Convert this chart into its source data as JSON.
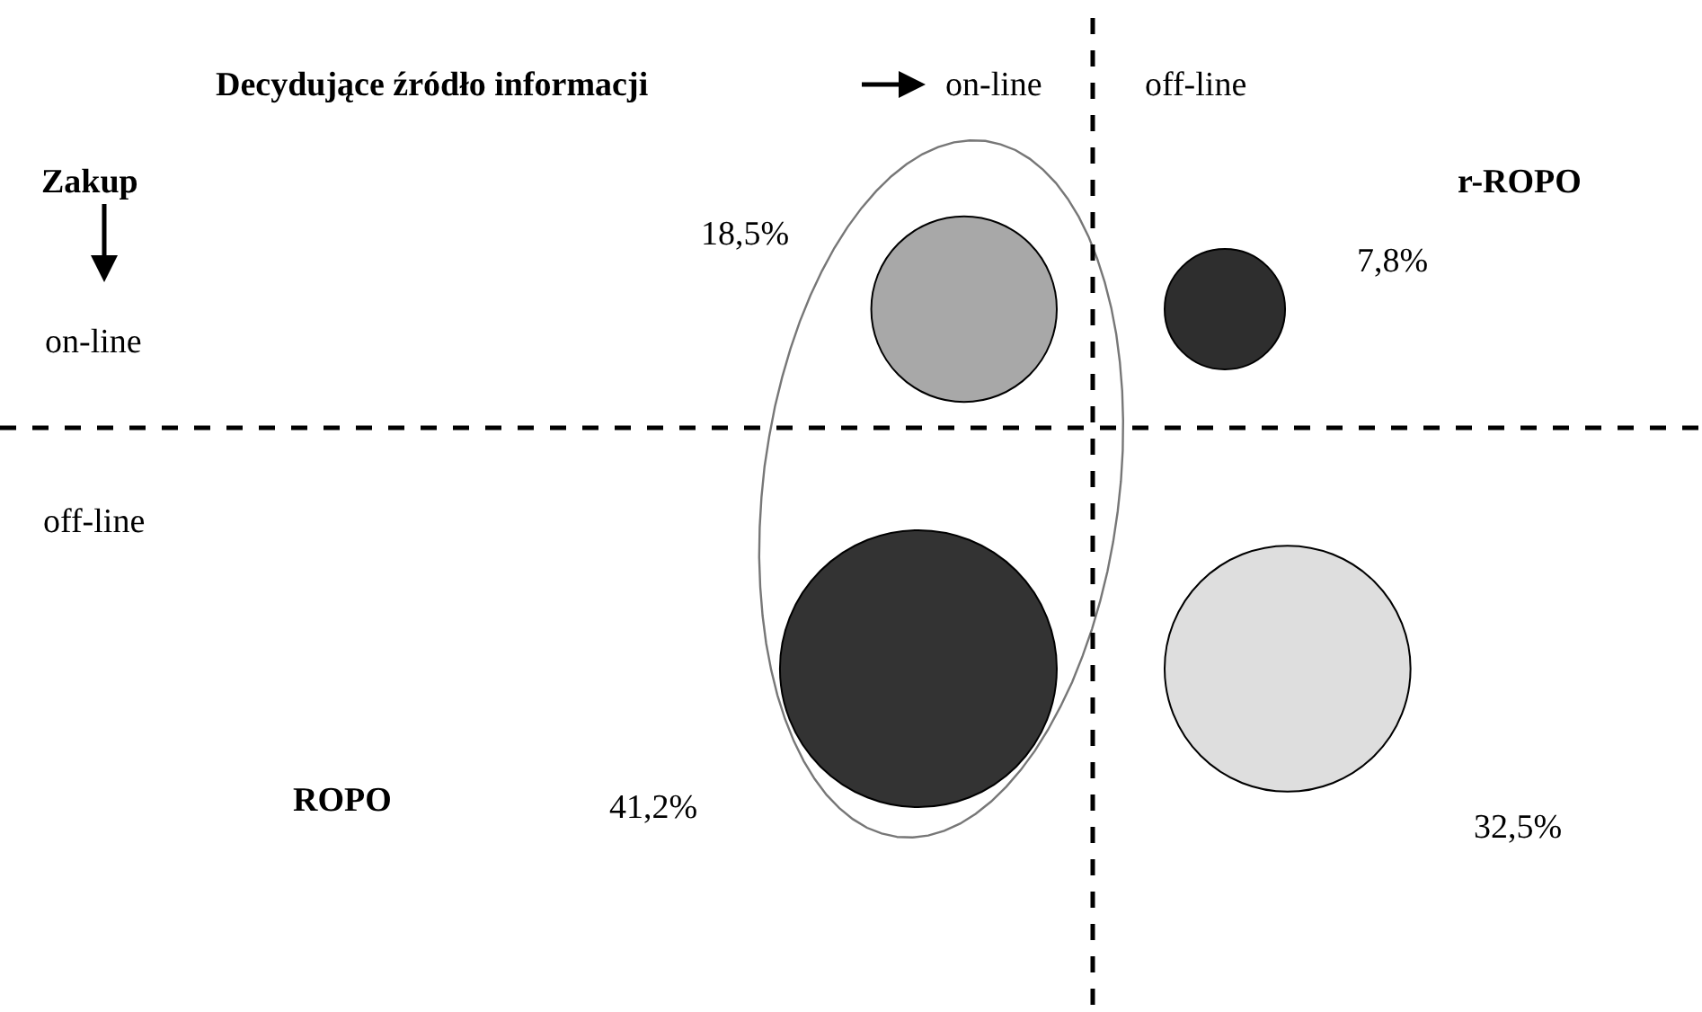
{
  "chart_data": {
    "type": "other",
    "xlabel": "Decydujące źródło informacji",
    "ylabel": "Zakup",
    "categories": [
      null,
      null,
      null,
      null
    ],
    "values": [
      18.5,
      7.8,
      41.2,
      32.5
    ],
    "value_labels": [
      "18,5%",
      "7,8%",
      "41,2%",
      "32,5%"
    ],
    "colors": [
      "#a8a8a8",
      "#2e2e2e",
      "#333333",
      "#dedede"
    ],
    "annotations": [
      "ROPO",
      "r-ROPO",
      "on-line",
      "off-line",
      "on-line",
      "off-line"
    ]
  }
}
